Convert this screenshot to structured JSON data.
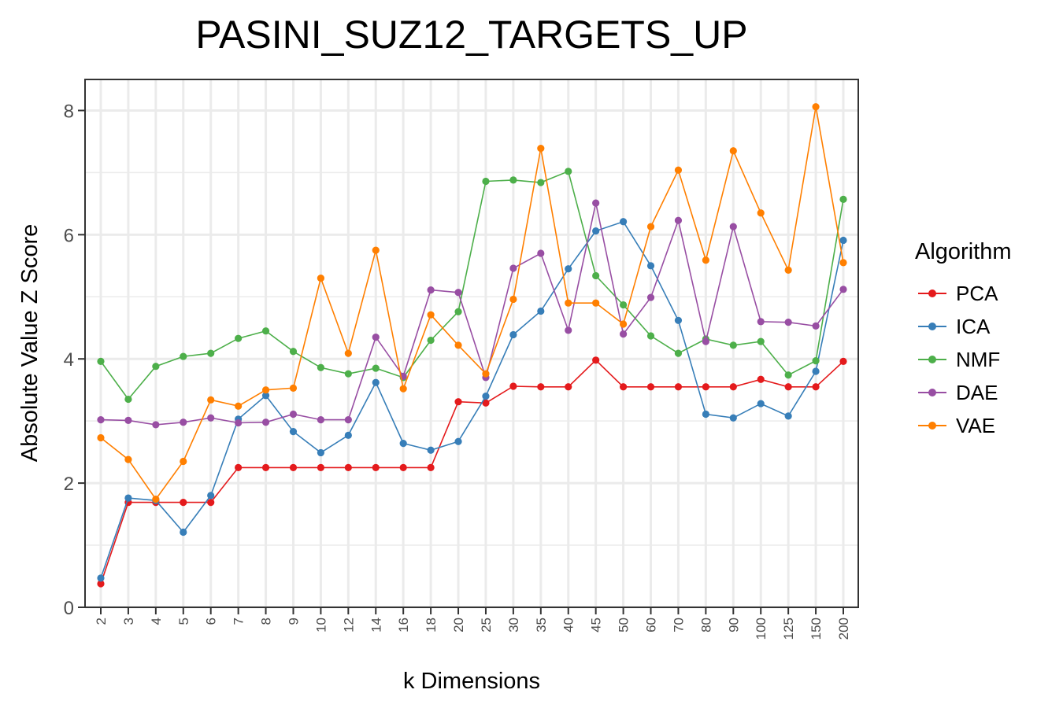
{
  "chart_data": {
    "type": "line",
    "title": "PASINI_SUZ12_TARGETS_UP",
    "xlabel": "k Dimensions",
    "ylabel": "Absolute Value Z Score",
    "categories": [
      "2",
      "3",
      "4",
      "5",
      "6",
      "7",
      "8",
      "9",
      "10",
      "12",
      "14",
      "16",
      "18",
      "20",
      "25",
      "30",
      "35",
      "40",
      "45",
      "50",
      "60",
      "70",
      "80",
      "90",
      "100",
      "125",
      "150",
      "200"
    ],
    "ylim": [
      0,
      8.5
    ],
    "yticks": [
      0,
      2,
      4,
      6,
      8
    ],
    "grid": true,
    "legend_title": "Algorithm",
    "legend_position": "right",
    "series": [
      {
        "name": "PCA",
        "color": "#e41a1c",
        "values": [
          0.38,
          1.69,
          1.69,
          1.69,
          1.69,
          2.25,
          2.25,
          2.25,
          2.25,
          2.25,
          2.25,
          2.25,
          2.25,
          3.31,
          3.29,
          3.56,
          3.55,
          3.55,
          3.98,
          3.55,
          3.55,
          3.55,
          3.55,
          3.55,
          3.67,
          3.55,
          3.55,
          3.96
        ]
      },
      {
        "name": "ICA",
        "color": "#377eb8",
        "values": [
          0.47,
          1.76,
          1.72,
          1.21,
          1.8,
          3.03,
          3.41,
          2.83,
          2.49,
          2.77,
          3.62,
          2.64,
          2.53,
          2.67,
          3.4,
          4.39,
          4.77,
          5.45,
          6.06,
          6.21,
          5.5,
          4.62,
          3.11,
          3.05,
          3.28,
          3.08,
          3.8,
          5.91
        ]
      },
      {
        "name": "NMF",
        "color": "#4daf4a",
        "values": [
          3.96,
          3.35,
          3.88,
          4.04,
          4.09,
          4.33,
          4.45,
          4.12,
          3.86,
          3.76,
          3.85,
          3.7,
          4.3,
          4.76,
          6.86,
          6.88,
          6.84,
          7.02,
          5.34,
          4.87,
          4.37,
          4.09,
          4.32,
          4.22,
          4.28,
          3.74,
          3.97,
          6.57
        ]
      },
      {
        "name": "DAE",
        "color": "#984ea3",
        "values": [
          3.02,
          3.01,
          2.94,
          2.98,
          3.05,
          2.97,
          2.98,
          3.11,
          3.02,
          3.02,
          4.35,
          3.72,
          5.11,
          5.07,
          3.7,
          5.46,
          5.7,
          4.46,
          6.51,
          4.4,
          4.99,
          6.23,
          4.28,
          6.13,
          4.6,
          4.59,
          4.53,
          5.12
        ]
      },
      {
        "name": "VAE",
        "color": "#ff7f00",
        "values": [
          2.73,
          2.38,
          1.74,
          2.35,
          3.34,
          3.24,
          3.5,
          3.53,
          5.3,
          4.09,
          5.75,
          3.52,
          4.71,
          4.22,
          3.76,
          4.96,
          7.39,
          4.9,
          4.9,
          4.56,
          6.13,
          7.04,
          5.59,
          7.35,
          6.35,
          5.43,
          8.06,
          5.55
        ]
      }
    ]
  }
}
